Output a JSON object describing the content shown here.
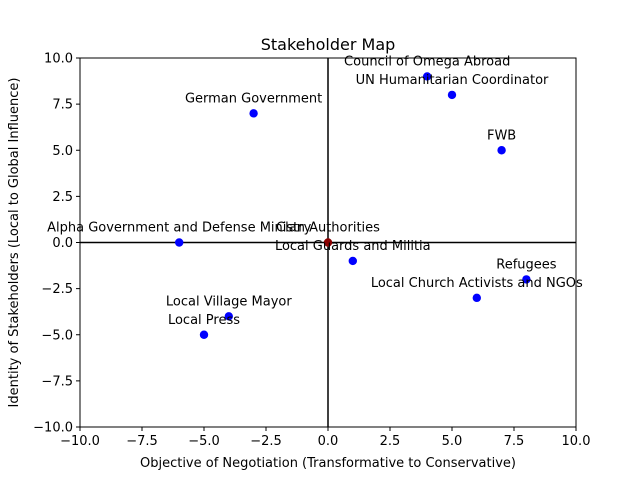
{
  "chart_data": {
    "type": "scatter",
    "title": "Stakeholder Map",
    "xlabel": "Objective of Negotiation (Transformative to Conservative)",
    "ylabel": "Identity of Stakeholders (Local to Global Influence)",
    "xlim": [
      -10,
      10
    ],
    "ylim": [
      -10,
      10
    ],
    "xticks": [
      -10,
      -7.5,
      -5,
      -2.5,
      0,
      2.5,
      5,
      7.5,
      10
    ],
    "yticks": [
      -10,
      -7.5,
      -5,
      -2.5,
      0,
      2.5,
      5,
      7.5,
      10
    ],
    "xtick_labels": [
      "−10.0",
      "−7.5",
      "−5.0",
      "−2.5",
      "0.0",
      "2.5",
      "5.0",
      "7.5",
      "10.0"
    ],
    "ytick_labels": [
      "−10.0",
      "−7.5",
      "−5.0",
      "−2.5",
      "0.0",
      "2.5",
      "5.0",
      "7.5",
      "10.0"
    ],
    "grid": false,
    "reference_lines": [
      "x=0",
      "y=0"
    ],
    "colors": {
      "point": "#0000ff",
      "highlight": "#8b0000",
      "axis": "#000000"
    },
    "points": [
      {
        "label": "Council of Omega Abroad",
        "x": 4,
        "y": 9
      },
      {
        "label": "UN Humanitarian Coordinator",
        "x": 5,
        "y": 8
      },
      {
        "label": "German Government",
        "x": -3,
        "y": 7
      },
      {
        "label": "FWB",
        "x": 7,
        "y": 5
      },
      {
        "label": "Alpha Government and Defense Ministry",
        "x": -6,
        "y": 0
      },
      {
        "label": "Clan Authorities",
        "x": 0,
        "y": 0,
        "highlight": true
      },
      {
        "label": "Local Guards and Militia",
        "x": 1,
        "y": -1
      },
      {
        "label": "Refugees",
        "x": 8,
        "y": -2
      },
      {
        "label": "Local Church Activists and NGOs",
        "x": 6,
        "y": -3
      },
      {
        "label": "Local Village Mayor",
        "x": -4,
        "y": -4
      },
      {
        "label": "Local Press",
        "x": -5,
        "y": -5
      }
    ]
  }
}
